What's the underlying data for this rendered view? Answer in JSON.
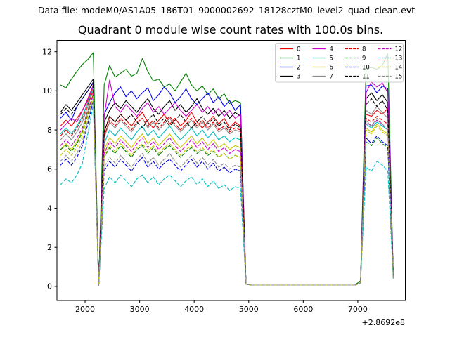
{
  "header": {
    "datafile_label": "Data file: modeM0/AS1A05_186T01_9000002692_18128cztM0_level2_quad_clean.evt"
  },
  "title": "Quadrant 0 module wise count rates with 100.0s bins.",
  "chart_data": {
    "type": "line",
    "title": "Quadrant 0 module wise count rates with 100.0s bins.",
    "xlabel": "",
    "ylabel": "",
    "grid": false,
    "legend_position": "upper right",
    "x_offset_label": "+2.8692e8",
    "xlim": [
      1484,
      7871
    ],
    "ylim": [
      -0.72,
      12.58
    ],
    "xticks": [
      2000,
      3000,
      4000,
      5000,
      6000,
      7000
    ],
    "yticks": [
      0,
      2,
      4,
      6,
      8,
      10,
      12
    ],
    "x_start": 1550,
    "x_step": 100,
    "n_points": 62,
    "series": [
      {
        "label": "0",
        "color": "#ee0000",
        "dashed": false,
        "values": [
          8.2,
          8.5,
          8.2,
          8.6,
          9.0,
          9.5,
          10.2,
          0.05,
          7.9,
          8.7,
          8.4,
          8.8,
          8.5,
          8.2,
          8.6,
          8.9,
          8.4,
          8.1,
          8.5,
          8.8,
          8.3,
          8.6,
          8.2,
          8.5,
          8.9,
          8.4,
          8.1,
          8.4,
          8.7,
          8.3,
          8.6,
          8.1,
          8.4,
          8.2,
          0.12,
          0.07,
          0.07,
          0.07,
          0.07,
          0.07,
          0.07,
          0.07,
          0.07,
          0.07,
          0.07,
          0.07,
          0.07,
          0.07,
          0.07,
          0.07,
          0.07,
          0.07,
          0.07,
          0.07,
          0.07,
          0.18,
          8.8,
          8.7,
          9.0,
          8.8,
          9.1,
          0.5
        ]
      },
      {
        "label": "1",
        "color": "#008000",
        "dashed": false,
        "values": [
          10.3,
          10.15,
          10.6,
          11.0,
          11.35,
          11.6,
          11.95,
          0.05,
          10.3,
          11.3,
          10.7,
          10.9,
          11.1,
          10.75,
          10.9,
          11.65,
          11.0,
          10.5,
          10.6,
          10.2,
          10.35,
          10.0,
          10.45,
          10.9,
          10.3,
          10.0,
          10.25,
          9.8,
          10.1,
          9.6,
          9.85,
          9.35,
          9.5,
          9.4,
          0.12,
          0.07,
          0.07,
          0.07,
          0.07,
          0.07,
          0.07,
          0.07,
          0.07,
          0.07,
          0.07,
          0.07,
          0.07,
          0.07,
          0.07,
          0.07,
          0.07,
          0.07,
          0.07,
          0.07,
          0.07,
          0.3,
          11.15,
          11.2,
          11.1,
          11.3,
          11.9,
          0.5
        ]
      },
      {
        "label": "2",
        "color": "#0000ee",
        "dashed": false,
        "values": [
          8.6,
          8.9,
          8.5,
          9.2,
          9.6,
          10.0,
          10.45,
          0.05,
          8.8,
          9.4,
          9.9,
          10.2,
          9.7,
          10.0,
          9.6,
          9.9,
          10.15,
          9.5,
          9.8,
          10.2,
          9.9,
          9.4,
          9.7,
          10.1,
          9.6,
          9.3,
          9.6,
          9.9,
          9.4,
          9.7,
          9.2,
          9.5,
          9.0,
          9.3,
          0.12,
          0.07,
          0.07,
          0.07,
          0.07,
          0.07,
          0.07,
          0.07,
          0.07,
          0.07,
          0.07,
          0.07,
          0.07,
          0.07,
          0.07,
          0.07,
          0.07,
          0.07,
          0.07,
          0.07,
          0.07,
          0.18,
          10.25,
          10.3,
          9.9,
          10.25,
          10.1,
          0.6
        ]
      },
      {
        "label": "3",
        "color": "#000000",
        "dashed": false,
        "values": [
          8.9,
          9.3,
          9.0,
          9.4,
          9.8,
          10.2,
          10.6,
          0.05,
          8.4,
          9.0,
          9.4,
          9.1,
          9.5,
          9.2,
          8.9,
          9.3,
          9.6,
          9.1,
          8.8,
          9.2,
          9.5,
          9.0,
          9.3,
          8.9,
          9.2,
          9.6,
          9.1,
          8.8,
          9.1,
          8.7,
          9.0,
          8.6,
          8.9,
          8.7,
          0.12,
          0.07,
          0.07,
          0.07,
          0.07,
          0.07,
          0.07,
          0.07,
          0.07,
          0.07,
          0.07,
          0.07,
          0.07,
          0.07,
          0.07,
          0.07,
          0.07,
          0.07,
          0.07,
          0.07,
          0.07,
          0.18,
          9.6,
          9.9,
          9.5,
          9.8,
          9.4,
          0.55
        ]
      },
      {
        "label": "4",
        "color": "#cc00cc",
        "dashed": false,
        "values": [
          8.0,
          8.3,
          8.6,
          8.4,
          9.0,
          9.6,
          10.3,
          0.05,
          8.7,
          10.55,
          9.2,
          8.9,
          9.3,
          9.0,
          8.7,
          9.1,
          9.4,
          8.9,
          9.2,
          8.8,
          9.1,
          9.4,
          9.0,
          8.7,
          9.0,
          9.3,
          8.9,
          9.2,
          8.8,
          9.1,
          8.7,
          9.0,
          8.6,
          8.8,
          0.12,
          0.07,
          0.07,
          0.07,
          0.07,
          0.07,
          0.07,
          0.07,
          0.07,
          0.07,
          0.07,
          0.07,
          0.07,
          0.07,
          0.07,
          0.07,
          0.07,
          0.07,
          0.07,
          0.07,
          0.07,
          0.18,
          9.9,
          10.45,
          10.2,
          10.4,
          9.9,
          0.6
        ]
      },
      {
        "label": "5",
        "color": "#00bfbf",
        "dashed": false,
        "values": [
          7.8,
          8.1,
          7.8,
          8.2,
          8.7,
          9.4,
          10.15,
          0.05,
          7.3,
          8.0,
          7.7,
          8.1,
          7.8,
          7.5,
          7.9,
          8.2,
          7.7,
          8.0,
          7.6,
          7.9,
          8.2,
          7.8,
          7.5,
          7.8,
          8.1,
          7.7,
          8.0,
          7.6,
          7.9,
          7.5,
          7.7,
          7.4,
          7.6,
          7.5,
          0.12,
          0.07,
          0.07,
          0.07,
          0.07,
          0.07,
          0.07,
          0.07,
          0.07,
          0.07,
          0.07,
          0.07,
          0.07,
          0.07,
          0.07,
          0.07,
          0.07,
          0.07,
          0.07,
          0.07,
          0.07,
          0.18,
          8.3,
          8.1,
          8.4,
          8.2,
          8.0,
          0.45
        ]
      },
      {
        "label": "6",
        "color": "#c8c800",
        "dashed": false,
        "values": [
          7.0,
          7.3,
          7.0,
          7.4,
          8.0,
          8.9,
          9.9,
          0.05,
          7.0,
          7.6,
          7.3,
          7.7,
          7.4,
          7.1,
          7.5,
          7.8,
          7.3,
          7.6,
          7.2,
          7.5,
          7.8,
          7.4,
          7.1,
          7.4,
          7.7,
          7.3,
          7.6,
          7.2,
          7.5,
          7.1,
          7.3,
          7.0,
          7.2,
          7.1,
          0.12,
          0.07,
          0.07,
          0.07,
          0.07,
          0.07,
          0.07,
          0.07,
          0.07,
          0.07,
          0.07,
          0.07,
          0.07,
          0.07,
          0.07,
          0.07,
          0.07,
          0.07,
          0.07,
          0.07,
          0.07,
          0.18,
          8.1,
          7.9,
          8.3,
          8.0,
          7.8,
          0.45
        ]
      },
      {
        "label": "7",
        "color": "#8c8c8c",
        "dashed": false,
        "values": [
          7.5,
          7.8,
          7.5,
          7.9,
          8.4,
          9.2,
          10.1,
          0.05,
          7.6,
          8.4,
          8.1,
          8.5,
          8.2,
          7.9,
          8.3,
          8.6,
          8.1,
          8.4,
          8.0,
          8.3,
          8.6,
          8.2,
          7.9,
          8.2,
          8.5,
          8.1,
          8.4,
          8.0,
          8.3,
          7.9,
          8.1,
          7.8,
          8.0,
          7.9,
          0.12,
          0.07,
          0.07,
          0.07,
          0.07,
          0.07,
          0.07,
          0.07,
          0.07,
          0.07,
          0.07,
          0.07,
          0.07,
          0.07,
          0.07,
          0.07,
          0.07,
          0.07,
          0.07,
          0.07,
          0.07,
          0.18,
          9.0,
          8.8,
          9.2,
          8.9,
          8.6,
          0.5
        ]
      },
      {
        "label": "8",
        "color": "#ee0000",
        "dashed": true,
        "values": [
          7.7,
          8.0,
          7.7,
          8.1,
          8.6,
          9.3,
          10.0,
          0.05,
          7.7,
          8.5,
          8.2,
          8.6,
          8.3,
          8.0,
          8.4,
          8.6,
          8.2,
          8.5,
          8.1,
          8.4,
          8.7,
          8.3,
          8.0,
          8.3,
          8.6,
          8.2,
          8.5,
          8.1,
          8.4,
          8.0,
          8.2,
          7.9,
          8.1,
          8.0,
          0.12,
          0.07,
          0.07,
          0.07,
          0.07,
          0.07,
          0.07,
          0.07,
          0.07,
          0.07,
          0.07,
          0.07,
          0.07,
          0.07,
          0.07,
          0.07,
          0.07,
          0.07,
          0.07,
          0.07,
          0.07,
          0.18,
          8.6,
          8.4,
          8.7,
          8.5,
          8.3,
          0.5
        ]
      },
      {
        "label": "9",
        "color": "#008000",
        "dashed": true,
        "values": [
          7.0,
          7.2,
          6.9,
          7.3,
          7.9,
          8.8,
          9.8,
          0.05,
          6.6,
          7.1,
          6.8,
          7.2,
          6.9,
          6.6,
          7.0,
          7.2,
          6.8,
          7.1,
          6.7,
          7.0,
          7.2,
          6.9,
          6.6,
          6.9,
          7.1,
          6.8,
          7.0,
          6.7,
          6.9,
          6.6,
          6.8,
          6.5,
          6.7,
          6.6,
          0.12,
          0.07,
          0.07,
          0.07,
          0.07,
          0.07,
          0.07,
          0.07,
          0.07,
          0.07,
          0.07,
          0.07,
          0.07,
          0.07,
          0.07,
          0.07,
          0.07,
          0.07,
          0.07,
          0.07,
          0.07,
          0.18,
          7.4,
          7.2,
          7.6,
          7.3,
          7.1,
          0.45
        ]
      },
      {
        "label": "10",
        "color": "#0000ee",
        "dashed": true,
        "values": [
          6.2,
          6.5,
          6.2,
          6.6,
          7.2,
          8.3,
          9.5,
          0.05,
          5.9,
          6.4,
          6.1,
          6.5,
          6.2,
          5.9,
          6.3,
          6.6,
          6.1,
          6.4,
          6.0,
          6.3,
          6.5,
          6.2,
          5.9,
          6.2,
          6.5,
          6.1,
          6.4,
          6.0,
          6.3,
          5.9,
          6.1,
          5.8,
          6.0,
          5.9,
          0.12,
          0.07,
          0.07,
          0.07,
          0.07,
          0.07,
          0.07,
          0.07,
          0.07,
          0.07,
          0.07,
          0.07,
          0.07,
          0.07,
          0.07,
          0.07,
          0.07,
          0.07,
          0.07,
          0.07,
          0.07,
          0.18,
          7.6,
          7.3,
          7.7,
          7.4,
          7.2,
          0.45
        ]
      },
      {
        "label": "11",
        "color": "#000000",
        "dashed": true,
        "values": [
          8.8,
          9.1,
          8.8,
          9.2,
          9.6,
          10.0,
          10.4,
          0.05,
          7.9,
          8.7,
          8.4,
          8.8,
          8.5,
          8.8,
          8.4,
          8.1,
          8.5,
          8.8,
          8.3,
          8.6,
          8.2,
          8.5,
          8.8,
          8.4,
          8.1,
          8.4,
          8.7,
          8.3,
          8.6,
          8.2,
          8.4,
          8.0,
          8.3,
          8.1,
          0.12,
          0.07,
          0.07,
          0.07,
          0.07,
          0.07,
          0.07,
          0.07,
          0.07,
          0.07,
          0.07,
          0.07,
          0.07,
          0.07,
          0.07,
          0.07,
          0.07,
          0.07,
          0.07,
          0.07,
          0.07,
          0.18,
          9.3,
          9.6,
          9.2,
          9.5,
          9.0,
          0.55
        ]
      },
      {
        "label": "12",
        "color": "#cc00cc",
        "dashed": true,
        "values": [
          7.2,
          7.5,
          7.2,
          7.6,
          8.1,
          9.0,
          9.85,
          0.05,
          6.8,
          7.4,
          7.1,
          7.5,
          7.2,
          6.9,
          7.3,
          7.6,
          7.1,
          7.4,
          7.0,
          7.3,
          7.6,
          7.2,
          6.9,
          7.2,
          7.5,
          7.1,
          7.4,
          7.0,
          7.3,
          6.9,
          7.1,
          6.8,
          7.0,
          6.9,
          0.12,
          0.07,
          0.07,
          0.07,
          0.07,
          0.07,
          0.07,
          0.07,
          0.07,
          0.07,
          0.07,
          0.07,
          0.07,
          0.07,
          0.07,
          0.07,
          0.07,
          0.07,
          0.07,
          0.07,
          0.07,
          0.18,
          8.4,
          8.2,
          8.5,
          8.3,
          8.0,
          0.5
        ]
      },
      {
        "label": "13",
        "color": "#00bfbf",
        "dashed": true,
        "values": [
          5.2,
          5.5,
          5.3,
          5.7,
          6.3,
          7.8,
          9.3,
          0.05,
          5.0,
          5.6,
          5.3,
          5.7,
          5.4,
          5.1,
          5.5,
          5.7,
          5.3,
          5.6,
          5.2,
          5.5,
          5.7,
          5.4,
          5.1,
          5.4,
          5.6,
          5.2,
          5.5,
          5.1,
          5.4,
          5.0,
          5.2,
          4.9,
          5.1,
          5.0,
          0.12,
          0.07,
          0.07,
          0.07,
          0.07,
          0.07,
          0.07,
          0.07,
          0.07,
          0.07,
          0.07,
          0.07,
          0.07,
          0.07,
          0.07,
          0.07,
          0.07,
          0.07,
          0.07,
          0.07,
          0.07,
          0.18,
          6.1,
          5.9,
          6.4,
          6.2,
          5.9,
          0.4
        ]
      },
      {
        "label": "14",
        "color": "#c8c800",
        "dashed": true,
        "values": [
          6.7,
          7.0,
          6.7,
          7.1,
          7.7,
          8.7,
          9.7,
          0.05,
          6.7,
          7.2,
          6.9,
          7.3,
          7.0,
          6.7,
          7.1,
          7.3,
          6.9,
          7.2,
          6.8,
          7.1,
          7.3,
          7.0,
          6.7,
          7.0,
          7.2,
          6.9,
          7.1,
          6.8,
          7.0,
          6.6,
          6.8,
          6.5,
          6.7,
          6.6,
          0.12,
          0.07,
          0.07,
          0.07,
          0.07,
          0.07,
          0.07,
          0.07,
          0.07,
          0.07,
          0.07,
          0.07,
          0.07,
          0.07,
          0.07,
          0.07,
          0.07,
          0.07,
          0.07,
          0.07,
          0.07,
          0.18,
          8.0,
          7.8,
          8.2,
          7.9,
          7.7,
          0.45
        ]
      },
      {
        "label": "15",
        "color": "#8c8c8c",
        "dashed": true,
        "values": [
          6.4,
          6.7,
          6.4,
          6.8,
          7.4,
          8.5,
          9.6,
          0.05,
          6.1,
          6.6,
          6.3,
          6.7,
          6.4,
          6.1,
          6.5,
          6.8,
          6.3,
          6.6,
          6.2,
          6.5,
          6.8,
          6.4,
          6.1,
          6.4,
          6.7,
          6.3,
          6.6,
          6.2,
          6.5,
          6.1,
          6.3,
          6.0,
          6.2,
          6.1,
          0.12,
          0.07,
          0.07,
          0.07,
          0.07,
          0.07,
          0.07,
          0.07,
          0.07,
          0.07,
          0.07,
          0.07,
          0.07,
          0.07,
          0.07,
          0.07,
          0.07,
          0.07,
          0.07,
          0.07,
          0.07,
          0.18,
          8.5,
          8.2,
          8.6,
          8.3,
          8.0,
          0.5
        ]
      }
    ]
  }
}
